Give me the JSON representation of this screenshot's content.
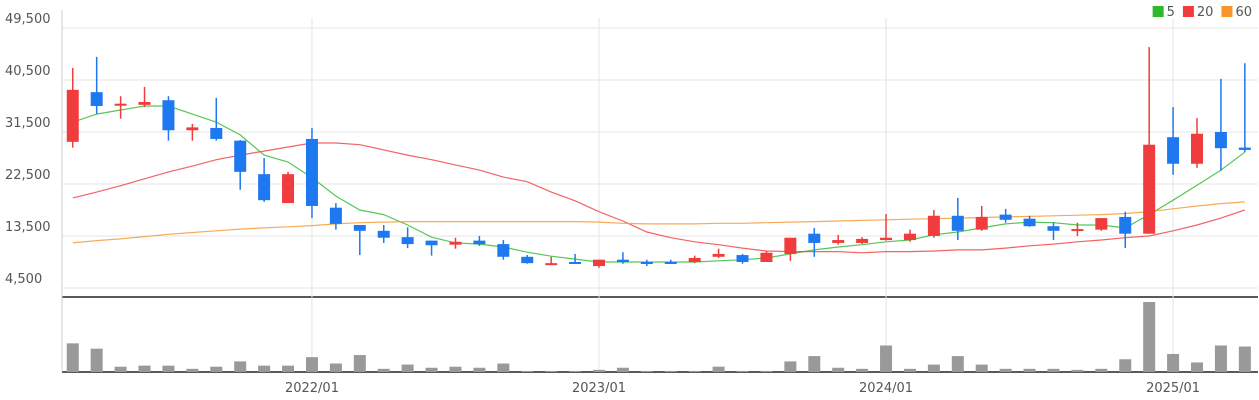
{
  "chart_data": {
    "type": "candlestick",
    "categories": [
      null,
      null,
      null,
      null,
      null,
      null,
      null,
      null,
      null,
      null,
      "2022/01",
      null,
      null,
      null,
      null,
      null,
      null,
      null,
      null,
      null,
      null,
      null,
      "2023/01",
      null,
      null,
      null,
      null,
      null,
      null,
      null,
      null,
      null,
      null,
      null,
      "2024/01",
      null,
      null,
      null,
      null,
      null,
      null,
      null,
      null,
      null,
      null,
      null,
      "2025/01",
      null,
      null,
      null
    ],
    "open": [
      29800,
      38400,
      36200,
      36200,
      37000,
      31800,
      32200,
      30000,
      24200,
      19200,
      30300,
      18400,
      15400,
      14400,
      13300,
      12700,
      12000,
      12700,
      12100,
      9900,
      8700,
      9000,
      8300,
      9400,
      9000,
      9000,
      9000,
      9900,
      10200,
      9000,
      10400,
      13900,
      12300,
      12300,
      12800,
      12800,
      13500,
      17000,
      14600,
      17200,
      16500,
      15200,
      14400,
      14600,
      16800,
      13900,
      30600,
      26000,
      31500,
      28800
    ],
    "high": [
      42600,
      44500,
      37700,
      39300,
      37700,
      32900,
      37400,
      30100,
      27000,
      24600,
      32200,
      19200,
      15400,
      15400,
      15000,
      12700,
      13200,
      13500,
      12800,
      10200,
      9900,
      10400,
      9400,
      10700,
      9400,
      9400,
      10100,
      11300,
      10400,
      10900,
      13200,
      14900,
      13700,
      13300,
      17300,
      14600,
      18000,
      20100,
      18700,
      18200,
      17000,
      15900,
      15800,
      16600,
      17700,
      46200,
      35800,
      33900,
      40700,
      43400
    ],
    "low": [
      28800,
      34600,
      33800,
      35800,
      30000,
      30000,
      30000,
      21500,
      19400,
      19200,
      16600,
      14600,
      10200,
      12300,
      11400,
      10100,
      11300,
      11800,
      9400,
      8700,
      8500,
      8700,
      8000,
      8700,
      8300,
      8700,
      8800,
      9700,
      8700,
      9000,
      9200,
      9900,
      12000,
      12100,
      12700,
      12500,
      13200,
      12800,
      14400,
      15800,
      15100,
      12800,
      13500,
      14400,
      11400,
      13900,
      24100,
      25300,
      24800,
      28000
    ],
    "close": [
      38800,
      36000,
      36400,
      36700,
      31800,
      32300,
      30300,
      24600,
      19700,
      24200,
      18700,
      15600,
      14400,
      13200,
      12100,
      11900,
      12500,
      12100,
      9900,
      8800,
      8800,
      8700,
      9400,
      9000,
      8700,
      8800,
      9700,
      10400,
      9000,
      10600,
      13200,
      12300,
      12800,
      13000,
      13200,
      13900,
      17000,
      14400,
      16800,
      16300,
      15200,
      14400,
      14700,
      16600,
      13900,
      29300,
      26000,
      31200,
      28700,
      28400
    ],
    "up_color": "#f03c3c",
    "down_color": "#1e78f0",
    "volume": [
      27,
      22,
      5,
      6,
      6,
      3,
      5,
      10,
      6,
      6,
      14,
      8,
      16,
      3,
      7,
      4,
      5,
      4,
      8,
      1,
      1,
      1,
      2,
      4,
      1,
      1,
      1,
      5,
      1,
      1,
      10,
      15,
      4,
      3,
      25,
      3,
      7,
      15,
      7,
      3,
      3,
      3,
      2,
      3,
      12,
      66,
      17,
      9,
      25,
      24
    ],
    "volume_color": "#999999",
    "series": [
      {
        "name": "5",
        "color": "#2db82d",
        "values": [
          33200,
          34600,
          35300,
          36000,
          36000,
          34600,
          33200,
          31000,
          27500,
          26300,
          23600,
          20400,
          18000,
          17200,
          15400,
          13300,
          12300,
          12100,
          11600,
          10700,
          10000,
          9500,
          9000,
          9000,
          9000,
          9000,
          9000,
          9200,
          9400,
          9700,
          10400,
          11100,
          11600,
          12000,
          12500,
          12800,
          13700,
          14200,
          14900,
          15600,
          15900,
          15800,
          15400,
          15400,
          14900,
          17200,
          19700,
          22300,
          24900,
          28000
        ]
      },
      {
        "name": "20",
        "color": "#f03c3c",
        "values": [
          20100,
          21100,
          22200,
          23400,
          24600,
          25600,
          26700,
          27500,
          28200,
          28900,
          29600,
          29600,
          29300,
          28400,
          27500,
          26700,
          25800,
          24900,
          23700,
          22900,
          21100,
          19600,
          17700,
          16100,
          14200,
          13200,
          12500,
          12000,
          11400,
          10900,
          10800,
          10800,
          10800,
          10600,
          10800,
          10800,
          10900,
          11100,
          11100,
          11400,
          11800,
          12100,
          12500,
          12800,
          13200,
          13500,
          14400,
          15400,
          16600,
          18000
        ]
      },
      {
        "name": "60",
        "color": "#f5962d",
        "values": [
          12300,
          12700,
          13000,
          13400,
          13800,
          14100,
          14400,
          14700,
          14900,
          15100,
          15300,
          15600,
          15800,
          15900,
          16000,
          16000,
          16000,
          16000,
          16000,
          16000,
          16000,
          16000,
          15900,
          15700,
          15600,
          15600,
          15600,
          15700,
          15700,
          15800,
          15900,
          16000,
          16100,
          16200,
          16300,
          16400,
          16500,
          16600,
          16700,
          16800,
          16900,
          17000,
          17100,
          17200,
          17400,
          17700,
          18200,
          18700,
          19100,
          19400
        ]
      }
    ],
    "ylim": [
      4500,
      49500
    ],
    "yticks": [
      {
        "value": 4500,
        "label": "4,500"
      },
      {
        "value": 13500,
        "label": "13,500"
      },
      {
        "value": 22500,
        "label": "22,500"
      },
      {
        "value": 31500,
        "label": "31,500"
      },
      {
        "value": 40500,
        "label": "40,500"
      },
      {
        "value": 49500,
        "label": "49,500"
      }
    ],
    "grid": true,
    "legend": "top-right"
  }
}
